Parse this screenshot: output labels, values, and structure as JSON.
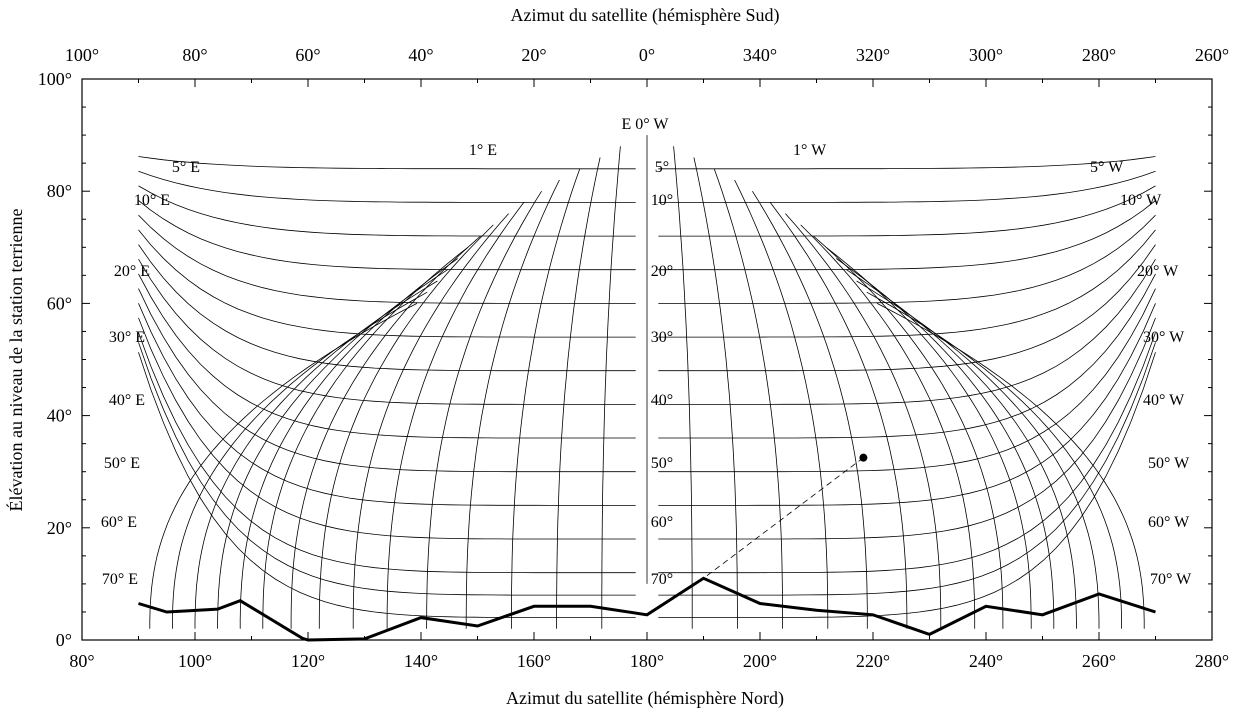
{
  "chart_data": {
    "type": "line",
    "title": "",
    "top_axis": {
      "label": "Azimut du satellite (hémisphère Sud)",
      "ticks": [
        "100°",
        "80°",
        "60°",
        "40°",
        "20°",
        "0°",
        "340°",
        "320°",
        "300°",
        "280°",
        "260°"
      ]
    },
    "bottom_axis": {
      "label": "Azimut du satellite (hémisphère Nord)",
      "ticks": [
        "80°",
        "100°",
        "120°",
        "140°",
        "160°",
        "180°",
        "200°",
        "220°",
        "240°",
        "260°",
        "280°"
      ],
      "xlim": [
        80,
        280
      ]
    },
    "y_axis": {
      "label": "Élévation au niveau de la station terrienne",
      "ticks": [
        "0°",
        "20°",
        "40°",
        "60°",
        "80°",
        "100°"
      ],
      "ylim": [
        0,
        100
      ]
    },
    "center_label": "E 0° W",
    "longitude_difference_labels": {
      "east": [
        "1° E",
        "5° E",
        "10° E",
        "20° E",
        "30° E",
        "40° E",
        "50° E",
        "60° E",
        "70° E"
      ],
      "center": [
        "5°",
        "10°",
        "20°",
        "30°",
        "40°",
        "50°",
        "60°",
        "70°"
      ],
      "west": [
        "1° W",
        "5° W",
        "10° W",
        "20° W",
        "30° W",
        "40° W",
        "50° W",
        "60° W",
        "70° W"
      ]
    },
    "horizon_profile": {
      "name": "",
      "x": [
        90,
        95,
        99,
        104,
        108,
        119,
        120,
        130,
        140,
        150,
        160,
        170,
        180,
        190,
        200,
        210,
        220,
        230,
        240,
        250,
        260,
        270
      ],
      "y": [
        6.5,
        5,
        5.2,
        5.5,
        7,
        0.3,
        0,
        0.2,
        4,
        2.5,
        6,
        6,
        4.5,
        11,
        6.5,
        5.3,
        4.5,
        1,
        6,
        4.5,
        8.2,
        5
      ]
    },
    "example_point": {
      "x": 218.3,
      "y": 32.5
    }
  }
}
